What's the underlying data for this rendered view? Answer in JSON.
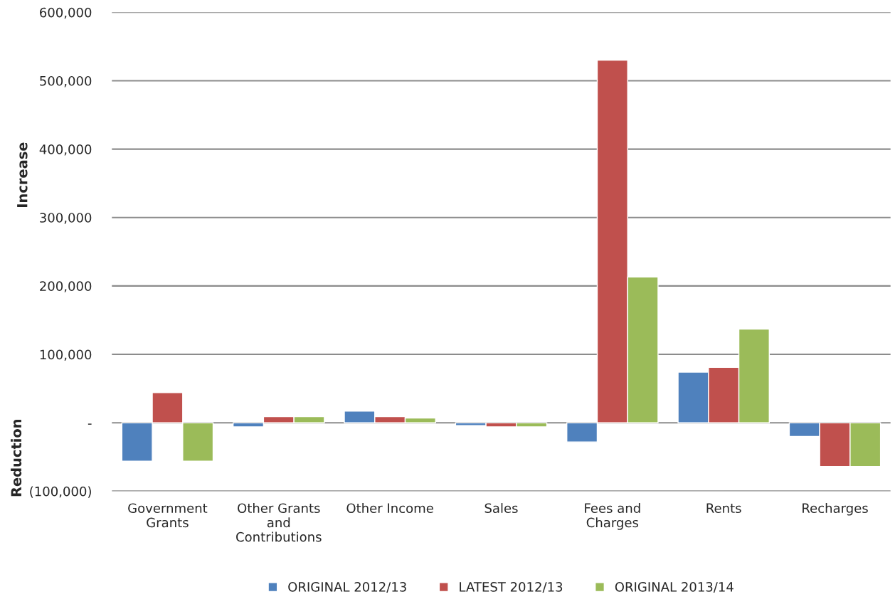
{
  "chart_data": {
    "type": "bar",
    "categories": [
      "Government\nGrants",
      "Other Grants\nand\nContributions",
      "Other Income",
      "Sales",
      "Fees and\nCharges",
      "Rents",
      "Recharges"
    ],
    "series": [
      {
        "name": "ORIGINAL 2012/13",
        "color": "#4f81bd",
        "values": [
          -56000,
          -6000,
          17000,
          -4000,
          -28000,
          74000,
          -20000
        ]
      },
      {
        "name": "LATEST 2012/13",
        "color": "#c0504d",
        "values": [
          44000,
          9000,
          9000,
          -6000,
          530000,
          81000,
          -64000
        ]
      },
      {
        "name": "ORIGINAL 2013/14",
        "color": "#9bbb59",
        "values": [
          -56000,
          9000,
          7000,
          -6000,
          213000,
          137000,
          -64000
        ]
      }
    ],
    "ylabel": "Increase",
    "annotations": [
      "Reduction"
    ],
    "ylim": [
      -100000,
      600000
    ],
    "yticks": [
      {
        "value": -100000,
        "label": "(100,000)"
      },
      {
        "value": 0,
        "label": "-"
      },
      {
        "value": 100000,
        "label": "100,000"
      },
      {
        "value": 200000,
        "label": "200,000"
      },
      {
        "value": 300000,
        "label": "300,000"
      },
      {
        "value": 400000,
        "label": "400,000"
      },
      {
        "value": 500000,
        "label": "500,000"
      },
      {
        "value": 600000,
        "label": "600,000"
      }
    ],
    "grid": "y",
    "legend": "bottom"
  }
}
